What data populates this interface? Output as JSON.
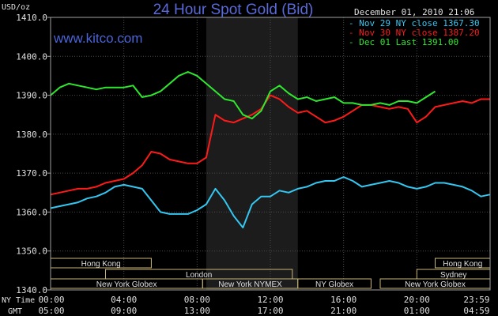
{
  "chart_data": {
    "type": "line",
    "title": "24 Hour Spot Gold (Bid)",
    "watermark": "www.kitco.com",
    "date_label": "December 01, 2010 21:06",
    "y_unit": "USD/oz",
    "ylim": [
      1340,
      1410
    ],
    "y_ticks": [
      "1410.0",
      "1400.0",
      "1390.0",
      "1380.0",
      "1370.0",
      "1360.0",
      "1350.0",
      "1340.0"
    ],
    "x_row1_label": "NY Time",
    "x_row2_label": "GMT",
    "x_ticks_ny": [
      "00:00",
      "04:00",
      "08:00",
      "12:00",
      "16:00",
      "20:00",
      "23:59"
    ],
    "x_ticks_gmt": [
      "05:00",
      "09:00",
      "13:00",
      "17:00",
      "21:00",
      "01:00",
      "04:59"
    ],
    "grid": true,
    "legend_position": "top-right",
    "shaded_band": {
      "from_hour": 8.5,
      "to_hour": 13.5
    },
    "colors": {
      "background": "#000000",
      "grid": "#4a4a4a",
      "axes": "#a0a0a0",
      "band": "#1c1c1c",
      "title": "#5a6ad8",
      "watermark": "#4a64d8",
      "text": "#e0e0e0",
      "sessions": "#c8b678"
    },
    "series": [
      {
        "name": "Nov 29 NY close 1367.30",
        "color": "#33c7f2",
        "x": [
          0,
          0.5,
          1,
          1.5,
          2,
          2.5,
          3,
          3.5,
          4,
          4.5,
          5,
          5.5,
          6,
          6.5,
          7,
          7.5,
          8,
          8.5,
          9,
          9.5,
          10,
          10.5,
          11,
          11.5,
          12,
          12.5,
          13,
          13.5,
          14,
          14.5,
          15,
          15.5,
          16,
          16.5,
          17,
          17.5,
          18,
          18.5,
          19,
          19.5,
          20,
          20.5,
          21,
          21.5,
          22,
          22.5,
          23,
          23.5,
          23.98
        ],
        "values": [
          1361,
          1361.5,
          1362,
          1362.5,
          1363.5,
          1364,
          1365,
          1366.5,
          1367,
          1366.5,
          1366,
          1363,
          1360,
          1359.5,
          1359.5,
          1359.5,
          1360.5,
          1362,
          1366,
          1363,
          1359,
          1356,
          1362,
          1364,
          1364,
          1365.5,
          1365,
          1366,
          1366.5,
          1367.5,
          1368,
          1368,
          1369,
          1368,
          1366.5,
          1367,
          1367.5,
          1368,
          1367.5,
          1366.5,
          1366,
          1366.5,
          1367.5,
          1367.5,
          1367,
          1366.5,
          1365.5,
          1364,
          1364.5
        ]
      },
      {
        "name": "Nov 30 NY close 1387.20",
        "color": "#ff1a1a",
        "x": [
          0,
          0.5,
          1,
          1.5,
          2,
          2.5,
          3,
          3.5,
          4,
          4.5,
          5,
          5.5,
          6,
          6.5,
          7,
          7.5,
          8,
          8.5,
          9,
          9.5,
          10,
          10.5,
          11,
          11.5,
          12,
          12.5,
          13,
          13.5,
          14,
          14.5,
          15,
          15.5,
          16,
          16.5,
          17,
          17.5,
          18,
          18.5,
          19,
          19.5,
          20,
          20.5,
          21,
          21.5,
          22,
          22.5,
          23,
          23.5,
          23.98
        ],
        "values": [
          1364.5,
          1365,
          1365.5,
          1366,
          1366,
          1366.5,
          1367.5,
          1368,
          1368.5,
          1370,
          1372,
          1375.5,
          1375,
          1373.5,
          1373,
          1372.5,
          1372.5,
          1374,
          1385,
          1383.5,
          1383,
          1384,
          1385,
          1386.5,
          1390,
          1389,
          1387,
          1385.5,
          1386,
          1384.5,
          1383,
          1383.5,
          1384.5,
          1386,
          1387.5,
          1387.5,
          1387,
          1386.5,
          1387,
          1386.5,
          1383,
          1384.5,
          1387,
          1387.5,
          1388,
          1388.5,
          1388,
          1389,
          1389
        ]
      },
      {
        "name": "Dec 01 Last 1391.00",
        "color": "#2ee82e",
        "x": [
          0,
          0.5,
          1,
          1.5,
          2,
          2.5,
          3,
          3.5,
          4,
          4.5,
          5,
          5.5,
          6,
          6.5,
          7,
          7.5,
          8,
          8.5,
          9,
          9.5,
          10,
          10.5,
          11,
          11.5,
          12,
          12.5,
          13,
          13.5,
          14,
          14.5,
          15,
          15.5,
          16,
          16.5,
          17,
          17.5,
          18,
          18.5,
          19,
          19.5,
          20,
          20.5,
          21
        ],
        "values": [
          1390,
          1392,
          1393,
          1392.5,
          1392,
          1391.5,
          1392,
          1392,
          1392,
          1392.5,
          1389.5,
          1390,
          1391,
          1393,
          1395,
          1396,
          1395,
          1393,
          1391,
          1389,
          1388.5,
          1385,
          1384,
          1386,
          1391,
          1392.5,
          1390.5,
          1389,
          1389.5,
          1388.5,
          1389,
          1389.5,
          1388,
          1388,
          1387.5,
          1387.5,
          1388,
          1387.5,
          1388.5,
          1388.5,
          1388,
          1389.5,
          1391
        ]
      }
    ],
    "sessions": [
      {
        "name": "Hong Kong",
        "row": 0,
        "segments": [
          [
            0,
            5.5
          ]
        ]
      },
      {
        "name": "Hong Kong",
        "row": 0,
        "segments": [
          [
            21,
            24
          ]
        ]
      },
      {
        "name": "London",
        "row": 1,
        "segments": [
          [
            3,
            13.2
          ]
        ]
      },
      {
        "name": "Sydney",
        "row": 1,
        "segments": [
          [
            20,
            24
          ]
        ]
      },
      {
        "name": "New York Globex",
        "row": 2,
        "segments": [
          [
            0,
            8.3
          ]
        ]
      },
      {
        "name": "New York NYMEX",
        "row": 2,
        "segments": [
          [
            8.3,
            13.5
          ]
        ]
      },
      {
        "name": "NY Globex",
        "row": 2,
        "segments": [
          [
            13.5,
            17.5
          ]
        ]
      },
      {
        "name": "New York Globex",
        "row": 2,
        "segments": [
          [
            18,
            24
          ]
        ]
      }
    ]
  }
}
